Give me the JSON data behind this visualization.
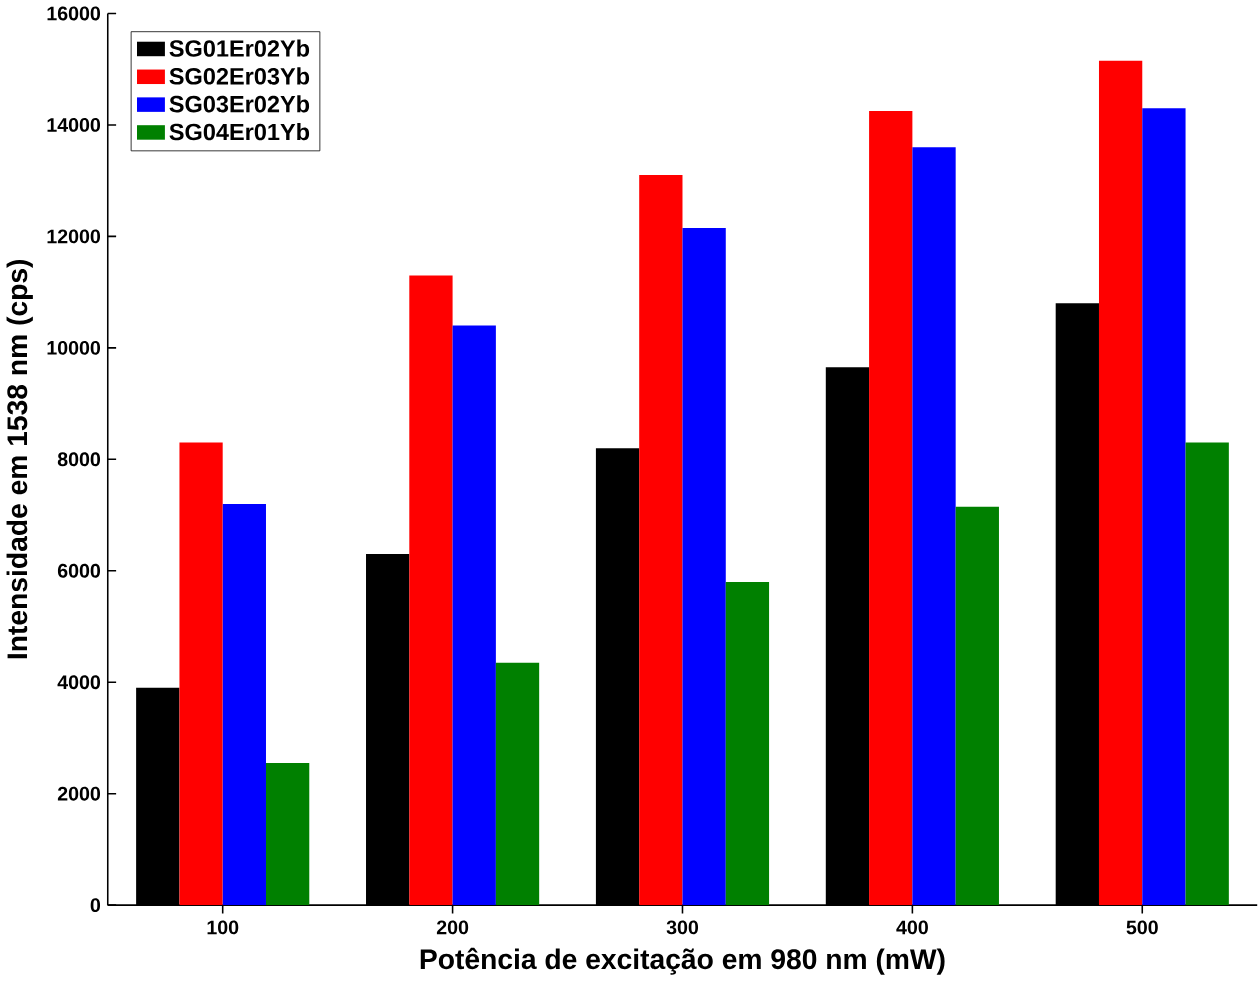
{
  "chart_data": {
    "type": "bar",
    "xlabel": "Potência de excitação em 980 nm (mW)",
    "ylabel": "Intensidade em 1538 nm (cps)",
    "categories": [
      "100",
      "200",
      "300",
      "400",
      "500"
    ],
    "series": [
      {
        "name": "SG01Er02Yb",
        "color": "#000000",
        "values": [
          3900,
          6300,
          8200,
          9650,
          10800
        ]
      },
      {
        "name": "SG02Er03Yb",
        "color": "#ff0000",
        "values": [
          8300,
          11300,
          13100,
          14250,
          15150
        ]
      },
      {
        "name": "SG03Er02Yb",
        "color": "#0000ff",
        "values": [
          7200,
          10400,
          12150,
          13600,
          14300
        ]
      },
      {
        "name": "SG04Er01Yb",
        "color": "#008000",
        "values": [
          2550,
          4350,
          5800,
          7150,
          8300
        ]
      }
    ],
    "ylim": [
      0,
      16000
    ],
    "yticks": [
      0,
      2000,
      4000,
      6000,
      8000,
      10000,
      12000,
      14000,
      16000
    ],
    "grid": false,
    "legend": "top left"
  }
}
